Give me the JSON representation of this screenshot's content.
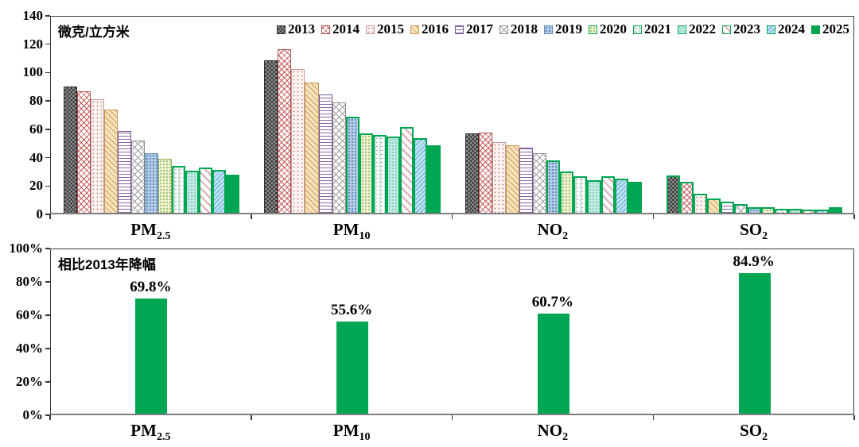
{
  "colors": {
    "green": "#00a651",
    "axis": "#3a3a3a",
    "baseline": "#7f7f7f"
  },
  "chart_data": [
    {
      "type": "bar",
      "title": "",
      "unit_label": "微克/立方米",
      "categories": [
        "PM2.5",
        "PM10",
        "NO2",
        "SO2"
      ],
      "categories_rich": [
        {
          "base": "PM",
          "sub": "2.5"
        },
        {
          "base": "PM",
          "sub": "10"
        },
        {
          "base": "NO",
          "sub": "2"
        },
        {
          "base": "SO",
          "sub": "2"
        }
      ],
      "series": [
        {
          "name": "2013",
          "values": [
            89.5,
            108,
            56,
            26.5
          ]
        },
        {
          "name": "2014",
          "values": [
            85.9,
            116,
            57,
            22
          ]
        },
        {
          "name": "2015",
          "values": [
            80.6,
            102,
            50,
            13.5
          ]
        },
        {
          "name": "2016",
          "values": [
            73,
            92,
            48,
            10
          ]
        },
        {
          "name": "2017",
          "values": [
            58,
            84,
            46,
            8
          ]
        },
        {
          "name": "2018",
          "values": [
            51,
            78,
            42,
            6
          ]
        },
        {
          "name": "2019",
          "values": [
            42,
            68,
            37,
            4
          ]
        },
        {
          "name": "2020",
          "values": [
            38,
            56,
            29,
            4
          ]
        },
        {
          "name": "2021",
          "values": [
            33,
            55,
            26,
            3
          ]
        },
        {
          "name": "2022",
          "values": [
            30,
            54,
            23,
            3
          ]
        },
        {
          "name": "2023",
          "values": [
            32,
            61,
            26,
            2.5
          ]
        },
        {
          "name": "2024",
          "values": [
            30.5,
            53,
            24,
            2.5
          ]
        },
        {
          "name": "2025",
          "values": [
            27,
            48,
            22,
            4
          ]
        }
      ],
      "ylim": [
        0,
        140
      ],
      "y_ticks": [
        140,
        120,
        100,
        80,
        60,
        40,
        20,
        0
      ],
      "legend_position": "top-right-inside",
      "grid": false,
      "green_outline_start_index": [
        8,
        6,
        6,
        0
      ],
      "legend_green_swatch_start_index": 7
    },
    {
      "type": "bar",
      "title": "",
      "label": "相比2013年降幅",
      "categories": [
        "PM2.5",
        "PM10",
        "NO2",
        "SO2"
      ],
      "categories_rich": [
        {
          "base": "PM",
          "sub": "2.5"
        },
        {
          "base": "PM",
          "sub": "10"
        },
        {
          "base": "NO",
          "sub": "2"
        },
        {
          "base": "SO",
          "sub": "2"
        }
      ],
      "values": [
        69.8,
        55.6,
        60.7,
        84.9
      ],
      "data_labels": [
        "69.8%",
        "55.6%",
        "60.7%",
        "84.9%"
      ],
      "ylim": [
        0,
        100
      ],
      "y_ticks": [
        "100%",
        "80%",
        "60%",
        "40%",
        "20%",
        "0%"
      ],
      "grid": false,
      "bar_color": "#00a651"
    }
  ]
}
